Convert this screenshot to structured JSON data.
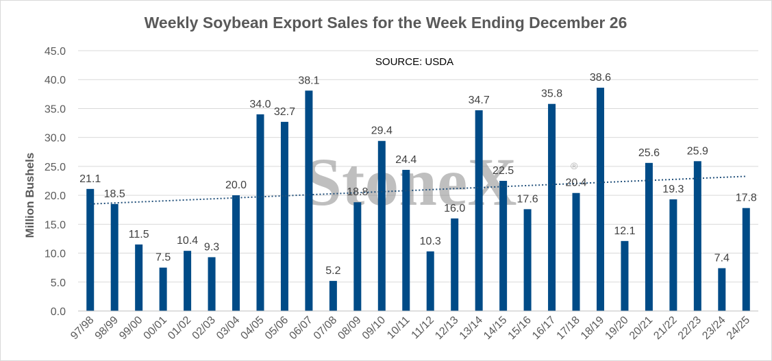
{
  "chart_data": {
    "type": "bar",
    "title": "Weekly Soybean Export Sales for the Week Ending December 26",
    "ylabel": "Million Bushels",
    "xlabel": "",
    "annotation": "SOURCE: USDA",
    "watermark": "StoneX",
    "watermark_mark": "®",
    "ylim": [
      0,
      45
    ],
    "yticks": [
      "0.0",
      "5.0",
      "10.0",
      "15.0",
      "20.0",
      "25.0",
      "30.0",
      "35.0",
      "40.0",
      "45.0"
    ],
    "grid": true,
    "legend": "none",
    "trendline": "linear, dotted",
    "bar_color": "#004b87",
    "trend_color": "#1f4e79",
    "categories": [
      "97/98",
      "98/99",
      "99/00",
      "00/01",
      "01/02",
      "02/03",
      "03/04",
      "04/05",
      "05/06",
      "06/07",
      "07/08",
      "08/09",
      "09/10",
      "10/11",
      "11/12",
      "12/13",
      "13/14",
      "14/15",
      "15/16",
      "16/17",
      "17/18",
      "18/19",
      "19/20",
      "20/21",
      "21/22",
      "22/23",
      "23/24",
      "24/25"
    ],
    "values": [
      21.1,
      18.5,
      11.5,
      7.5,
      10.4,
      9.3,
      20.0,
      34.0,
      32.7,
      38.1,
      5.2,
      18.8,
      29.4,
      24.4,
      10.3,
      16.0,
      34.7,
      22.5,
      17.6,
      35.8,
      20.4,
      38.6,
      12.1,
      25.6,
      19.3,
      25.9,
      7.4,
      17.8
    ],
    "value_labels": [
      "21.1",
      "18.5",
      "11.5",
      "7.5",
      "10.4",
      "9.3",
      "20.0",
      "34.0",
      "32.7",
      "38.1",
      "5.2",
      "18.8",
      "29.4",
      "24.4",
      "10.3",
      "16.0",
      "34.7",
      "22.5",
      "17.6",
      "35.8",
      "20.4",
      "38.6",
      "12.1",
      "25.6",
      "19.3",
      "25.9",
      "7.4",
      "17.8"
    ]
  }
}
